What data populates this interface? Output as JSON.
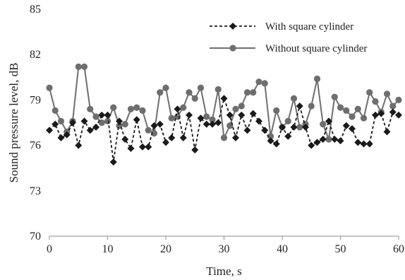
{
  "chart_data": {
    "type": "line",
    "title": "",
    "xlabel": "Time, s",
    "ylabel": "Sound pressure level, dB",
    "xlim": [
      0,
      60
    ],
    "ylim": [
      70,
      85
    ],
    "xticks": [
      "0",
      "10",
      "20",
      "30",
      "40",
      "50",
      "60"
    ],
    "yticks": [
      "70",
      "73",
      "76",
      "79",
      "82",
      "85"
    ],
    "grid": false,
    "legend_position": "top-right",
    "x": [
      0,
      1,
      2,
      3,
      4,
      5,
      6,
      7,
      8,
      9,
      10,
      11,
      12,
      13,
      14,
      15,
      16,
      17,
      18,
      19,
      20,
      21,
      22,
      23,
      24,
      25,
      26,
      27,
      28,
      29,
      30,
      31,
      32,
      33,
      34,
      35,
      36,
      37,
      38,
      39,
      40,
      41,
      42,
      43,
      44,
      45,
      46,
      47,
      48,
      49,
      50,
      51,
      52,
      53,
      54,
      55,
      56,
      57,
      58,
      59,
      60
    ],
    "series": [
      {
        "name": "With square cylinder",
        "color": "#1a1a1a",
        "line_style": "dashed",
        "marker": "diamond",
        "values": [
          77.0,
          77.4,
          76.5,
          76.7,
          77.5,
          76.0,
          77.6,
          77.0,
          77.2,
          78.0,
          78.0,
          74.9,
          77.6,
          76.4,
          75.8,
          77.7,
          75.9,
          75.9,
          77.3,
          77.4,
          76.2,
          76.5,
          78.4,
          76.5,
          78.0,
          75.7,
          77.8,
          77.4,
          77.4,
          77.5,
          79.1,
          78.0,
          76.5,
          78.0,
          77.0,
          78.1,
          77.6,
          77.0,
          76.3,
          76.1,
          77.2,
          76.6,
          77.2,
          78.6,
          77.2,
          76.0,
          76.2,
          76.4,
          77.6,
          76.4,
          76.3,
          77.3,
          77.1,
          76.2,
          76.1,
          76.1,
          78.0,
          78.1,
          76.9,
          78.2,
          78.0
        ]
      },
      {
        "name": "Without square cylinder",
        "color": "#6e6e6e",
        "line_style": "solid",
        "marker": "circle",
        "values": [
          79.8,
          78.3,
          77.6,
          76.9,
          77.6,
          81.2,
          81.2,
          78.4,
          77.9,
          77.5,
          77.6,
          78.5,
          77.3,
          77.4,
          78.4,
          78.5,
          78.3,
          77.0,
          76.8,
          79.5,
          79.8,
          77.8,
          77.9,
          78.5,
          79.5,
          79.1,
          79.8,
          77.9,
          77.7,
          79.7,
          76.5,
          77.3,
          78.4,
          78.6,
          79.5,
          79.5,
          80.2,
          80.1,
          76.6,
          78.3,
          77.2,
          77.6,
          79.1,
          77.2,
          77.4,
          78.6,
          80.4,
          77.4,
          76.4,
          79.2,
          78.5,
          78.3,
          77.9,
          78.4,
          77.8,
          79.5,
          78.9,
          78.2,
          79.4,
          78.6,
          79.0
        ]
      }
    ]
  }
}
